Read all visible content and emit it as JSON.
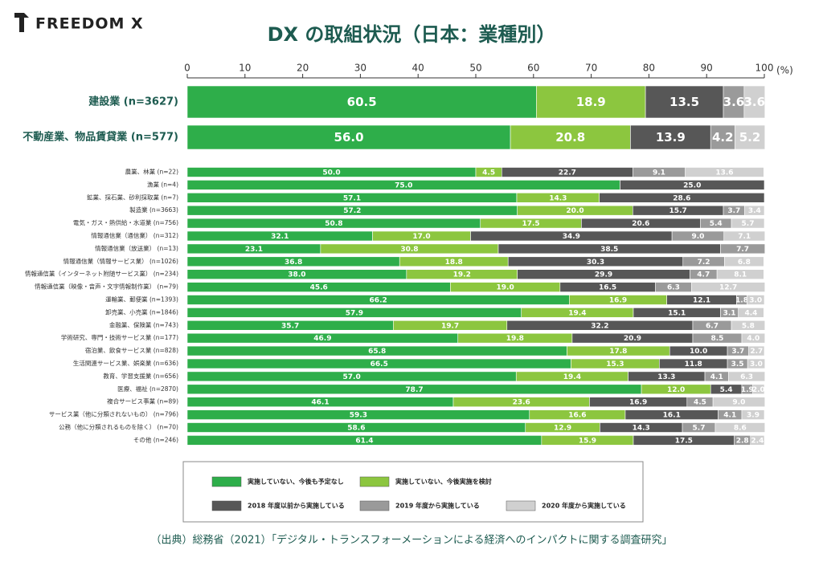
{
  "logo": "FREEDOM X",
  "source": "（出典）総務省（2021）「デジタル・トランスフォーメーションによる経済へのインパクトに関する調査研究」",
  "chart_data": {
    "type": "bar",
    "orientation": "horizontal",
    "stacked": true,
    "title": "DX の取組状況（日本：業種別）",
    "xlabel": "(%)",
    "xlim": [
      0,
      100
    ],
    "xticks": [
      0,
      10,
      20,
      30,
      40,
      50,
      60,
      70,
      80,
      90,
      100
    ],
    "categories": [
      "建設業 (n=3627)",
      "不動産業、物品賃貸業 (n=577)",
      "農業、林業 (n=22)",
      "漁業 (n=4)",
      "鉱業、採石業、砂利採取業 (n=7)",
      "製造業 (n=3663)",
      "電気・ガス・熱供給・水道業 (n=756)",
      "情報通信業（通信業） (n=312)",
      "情報通信業（放送業） (n=13)",
      "情報通信業（情報サービス業） (n=1026)",
      "情報通信業（インターネット附随サービス業） (n=234)",
      "情報通信業（映像・音声・文字情報制作業） (n=79)",
      "運輸業、郵便業 (n=1393)",
      "卸売業、小売業 (n=1846)",
      "金融業、保険業 (n=743)",
      "学術研究、専門・技術サービス業 (n=177)",
      "宿泊業、飲食サービス業 (n=828)",
      "生活関連サービス業、娯楽業 (n=636)",
      "教育、学習支援業 (n=656)",
      "医療、福祉 (n=2870)",
      "複合サービス事業 (n=89)",
      "サービス業（他に分類されないもの） (n=796)",
      "公務（他に分類されるものを除く） (n=70)",
      "その他 (n=246)"
    ],
    "series": [
      {
        "name": "実施していない、今後も予定なし",
        "color": "#2eae4a",
        "values": [
          60.5,
          56.0,
          50.0,
          75.0,
          57.1,
          57.2,
          50.8,
          32.1,
          23.1,
          36.8,
          38.0,
          45.6,
          66.2,
          57.9,
          35.7,
          46.9,
          65.8,
          66.5,
          57.0,
          78.7,
          46.1,
          59.3,
          58.6,
          61.4
        ],
        "value_labels": [
          "60.5",
          "56.0",
          "50.0",
          "75.0",
          "57.1",
          "57.2",
          "50.8",
          "32.1",
          "23.1",
          "36.8",
          "38.0",
          "45.6",
          "66.2",
          "57.9",
          "35.7",
          "46.9",
          "65.8",
          "66.5",
          "57.0",
          "78.7",
          "46.1",
          "59.3",
          "58.6",
          "61.4"
        ]
      },
      {
        "name": "実施していない、今後実施を検討",
        "color": "#8cc63f",
        "values": [
          18.9,
          20.8,
          4.5,
          0,
          14.3,
          20.0,
          17.5,
          17.0,
          30.8,
          18.8,
          19.2,
          19.0,
          16.9,
          19.4,
          19.7,
          19.8,
          17.8,
          15.3,
          19.4,
          12.0,
          23.6,
          16.6,
          12.9,
          15.9
        ],
        "value_labels": [
          "18.9",
          "20.8",
          "4.5",
          null,
          "14.3",
          "20.0",
          "17.5",
          "17.0",
          "30.8",
          "18.8",
          "19.2",
          "19.0",
          "16.9",
          "19.4",
          "19.7",
          "19.8",
          "17.8",
          "15.3",
          "19.4",
          "12.0",
          "23.6",
          "16.6",
          "12.9",
          "15.9"
        ]
      },
      {
        "name": "2018 年度以前から実施している",
        "color": "#575757",
        "values": [
          13.5,
          13.9,
          22.7,
          25.0,
          28.6,
          15.7,
          20.6,
          34.9,
          38.5,
          30.3,
          29.9,
          16.5,
          12.1,
          15.1,
          32.2,
          20.9,
          10.0,
          11.8,
          13.3,
          5.4,
          16.9,
          16.1,
          14.3,
          17.5
        ],
        "value_labels": [
          "13.5",
          "13.9",
          "22.7",
          "25.0",
          "28.6",
          "15.7",
          "20.6",
          "34.9",
          "38.5",
          "30.3",
          "29.9",
          "16.5",
          "12.1",
          "15.1",
          "32.2",
          "20.9",
          "10.0",
          "11.8",
          "13.3",
          "5.4",
          "16.9",
          "16.1",
          "14.3",
          "17.5"
        ]
      },
      {
        "name": "2019 年度から実施している",
        "color": "#9a9a9a",
        "values": [
          3.6,
          4.2,
          9.1,
          0,
          0,
          3.7,
          5.4,
          9.0,
          7.7,
          7.2,
          4.7,
          6.3,
          1.8,
          3.1,
          6.7,
          8.5,
          3.7,
          3.5,
          4.1,
          1.9,
          4.5,
          4.1,
          5.7,
          2.8
        ],
        "value_labels": [
          "3.6",
          "4.2",
          "9.1",
          null,
          null,
          "3.7",
          "5.4",
          "9.0",
          "7.7",
          "7.2",
          "4.7",
          "6.3",
          "1.8",
          "3.1",
          "6.7",
          "8.5",
          "3.7",
          "3.5",
          "4.1",
          "1.9",
          "4.5",
          "4.1",
          "5.7",
          "2.8"
        ]
      },
      {
        "name": "2020 年度から実施している",
        "color": "#d0d0d0",
        "values": [
          3.6,
          5.2,
          13.6,
          0,
          0,
          3.4,
          5.7,
          7.1,
          0,
          6.8,
          8.1,
          12.7,
          3.0,
          4.4,
          5.8,
          4.0,
          2.7,
          3.0,
          6.3,
          2.0,
          9.0,
          3.9,
          8.6,
          2.4
        ],
        "value_labels": [
          "3.6",
          "5.2",
          "13.6",
          null,
          null,
          "3.4",
          "5.7",
          "7.1",
          null,
          "6.8",
          "8.1",
          "12.7",
          "3.0",
          "4.4",
          "5.8",
          "4.0",
          "2.7",
          "3.0",
          "6.3",
          "2.0",
          "9.0",
          "3.9",
          "8.6",
          "2.4"
        ]
      }
    ]
  }
}
